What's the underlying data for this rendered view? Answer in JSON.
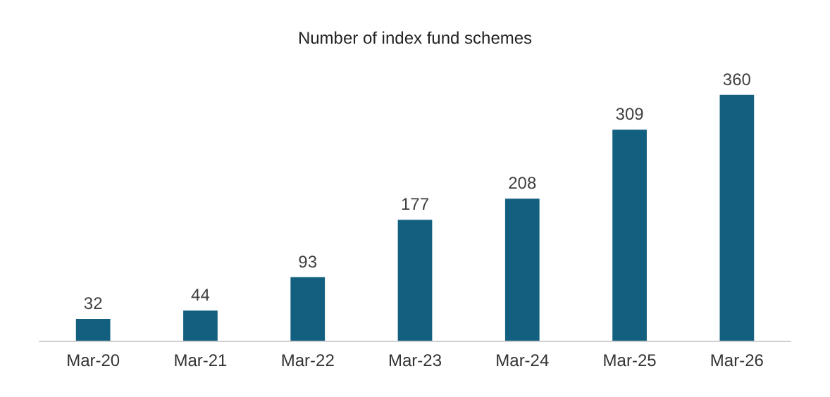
{
  "chart_data": {
    "type": "bar",
    "title": "Number of index fund schemes",
    "categories": [
      "Mar-20",
      "Mar-21",
      "Mar-22",
      "Mar-23",
      "Mar-24",
      "Mar-25",
      "Mar-26"
    ],
    "values": [
      32,
      44,
      93,
      177,
      208,
      309,
      360
    ],
    "color": "#135f80",
    "data_labels": true
  }
}
